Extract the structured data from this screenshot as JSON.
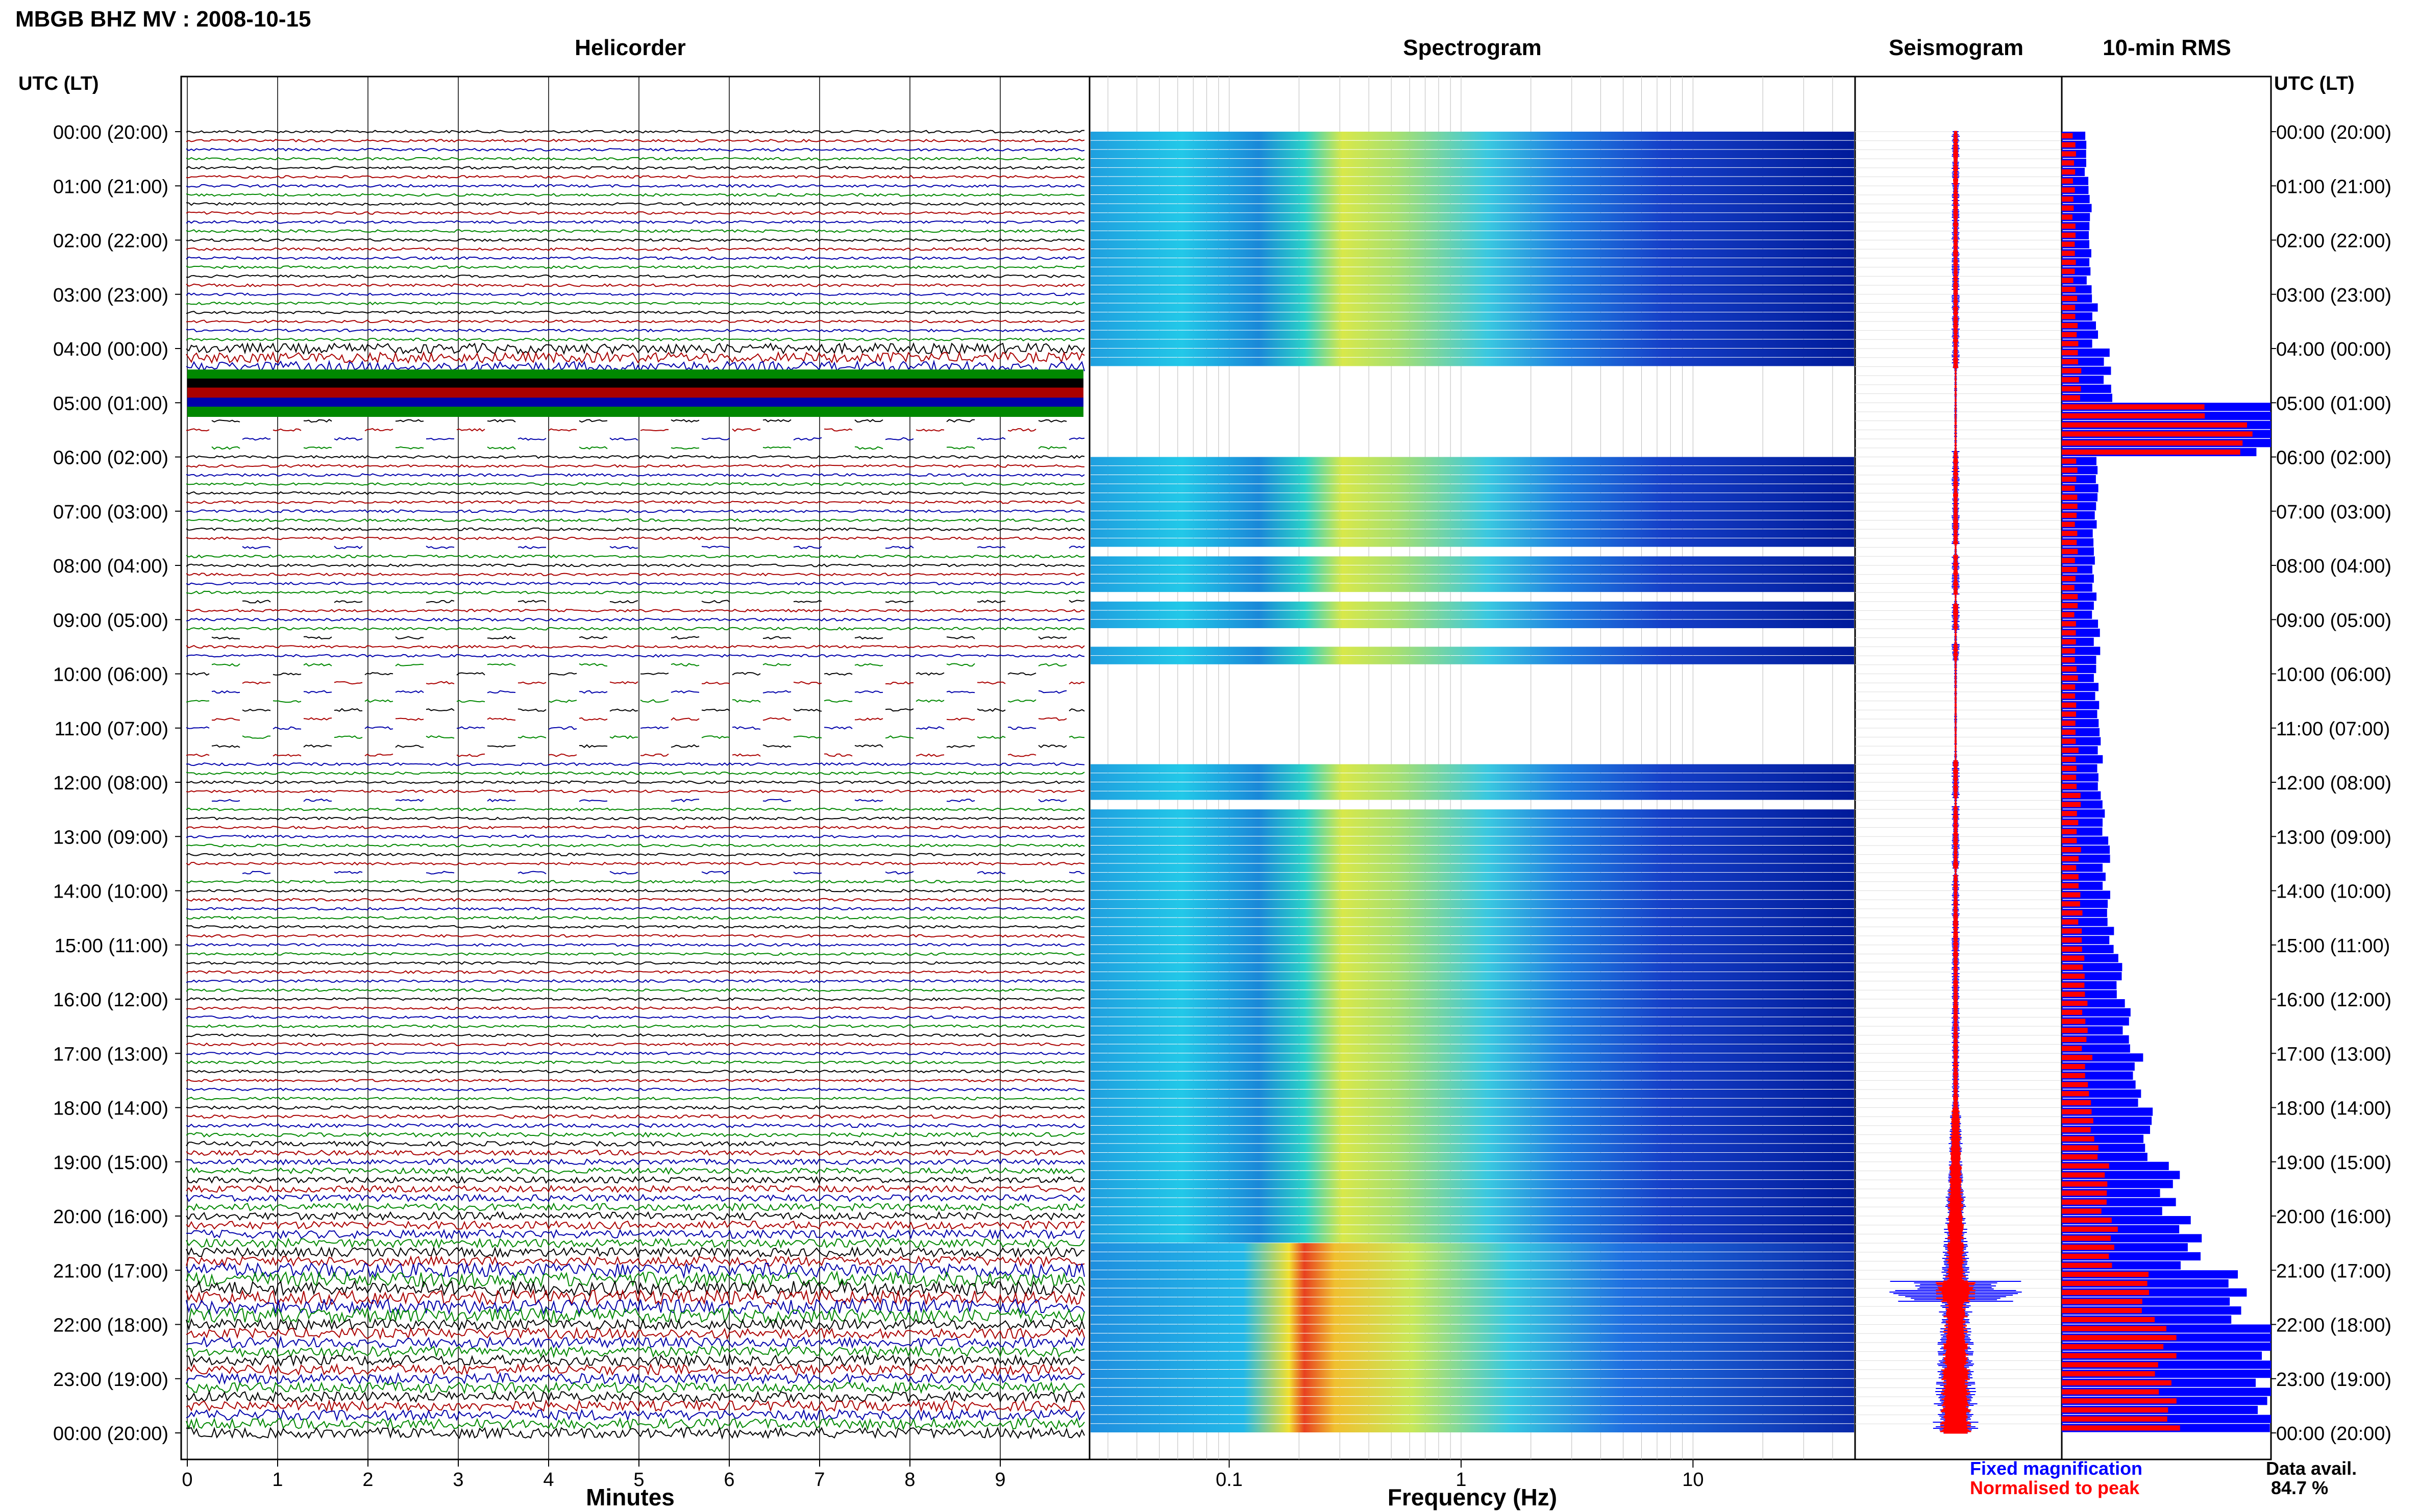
{
  "chart_data": {
    "type": "composite",
    "title": "MBGB BHZ MV : 2008-10-15",
    "panel_titles": {
      "helicorder": "Helicorder",
      "spectrogram": "Spectrogram",
      "seismogram": "Seismogram",
      "rms": "10-min RMS"
    },
    "left_axis_label": "UTC (LT)",
    "right_axis_label": "UTC (LT)",
    "time_ticks": [
      "00:00 (20:00)",
      "01:00 (21:00)",
      "02:00 (22:00)",
      "03:00 (23:00)",
      "04:00 (00:00)",
      "05:00 (01:00)",
      "06:00 (02:00)",
      "07:00 (03:00)",
      "08:00 (04:00)",
      "09:00 (05:00)",
      "10:00 (06:00)",
      "11:00 (07:00)",
      "12:00 (08:00)",
      "13:00 (09:00)",
      "14:00 (10:00)",
      "15:00 (11:00)",
      "16:00 (12:00)",
      "17:00 (13:00)",
      "18:00 (14:00)",
      "19:00 (15:00)",
      "20:00 (16:00)",
      "21:00 (17:00)",
      "22:00 (18:00)",
      "23:00 (19:00)",
      "00:00 (20:00)"
    ],
    "helicorder": {
      "xlabel": "Minutes",
      "xticks": [
        "0",
        "1",
        "2",
        "3",
        "4",
        "5",
        "6",
        "7",
        "8",
        "9"
      ],
      "xlim": [
        0,
        10
      ],
      "trace_colors": [
        "#000000",
        "#aa0000",
        "#0000aa",
        "#008800"
      ],
      "rows_per_hour": 6
    },
    "spectrogram": {
      "xlabel": "Frequency (Hz)",
      "xscale": "log",
      "xticks": [
        "0.1",
        "1",
        "10"
      ],
      "xlim": [
        0.025,
        50
      ]
    },
    "legend": {
      "fixed": {
        "label": "Fixed magnification",
        "color": "#0000ff"
      },
      "normalised": {
        "label": "Normalised to peak",
        "color": "#ff0000"
      }
    },
    "data_availability": {
      "label": "Data avail.",
      "value": "84.7 %"
    },
    "rms_hourly_fixed": [
      0.12,
      0.13,
      0.13,
      0.16,
      0.22,
      1.0,
      0.17,
      0.16,
      0.16,
      0.17,
      0.17,
      0.18,
      0.19,
      0.21,
      0.23,
      0.27,
      0.31,
      0.36,
      0.42,
      0.52,
      0.62,
      0.85,
      0.98,
      1.0
    ],
    "rms_hourly_normalised": [
      0.06,
      0.06,
      0.06,
      0.07,
      0.09,
      0.8,
      0.07,
      0.07,
      0.07,
      0.07,
      0.07,
      0.07,
      0.08,
      0.08,
      0.09,
      0.1,
      0.11,
      0.13,
      0.16,
      0.2,
      0.26,
      0.4,
      0.48,
      0.52
    ],
    "gap_hours": [
      [
        4.35,
        5.9
      ],
      [
        7.6,
        7.8
      ],
      [
        8.55,
        8.7
      ],
      [
        9.2,
        9.45
      ],
      [
        9.75,
        11.6
      ],
      [
        12.3,
        12.45
      ],
      [
        13.6,
        13.7
      ]
    ]
  }
}
